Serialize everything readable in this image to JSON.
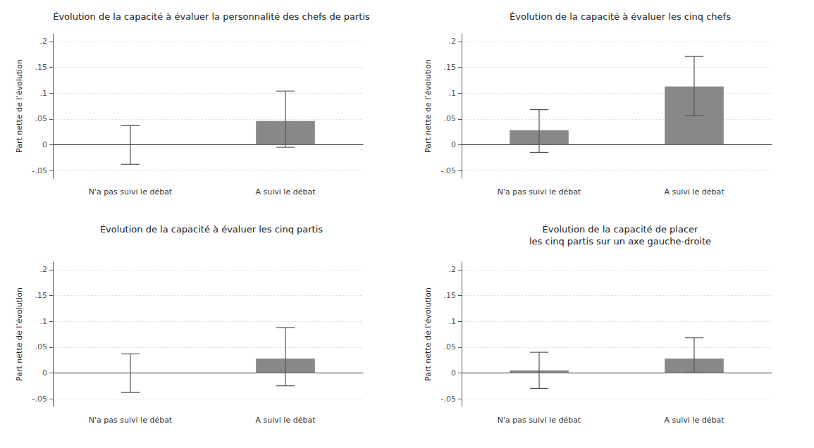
{
  "chart_data": [
    {
      "type": "bar",
      "title": "Évolution de la capacité à évaluer la personnalité des chefs de partis",
      "ylabel": "Part nette de l’évolution",
      "categories": [
        "N'a pas suivi le débat",
        "A suivi le débat"
      ],
      "values": [
        0.0,
        0.046
      ],
      "error_low": [
        0.038,
        0.051
      ],
      "error_high": [
        0.037,
        0.058
      ],
      "color": "#888888",
      "ylim": [
        -0.065,
        0.215
      ],
      "yticks": [
        {
          "value": -0.05,
          "label": "-.05"
        },
        0,
        {
          "value": 0.05,
          "label": ".05"
        },
        {
          "value": 0.1,
          "label": ".1"
        },
        {
          "value": 0.15,
          "label": ".15"
        },
        {
          "value": 0.2,
          "label": ".2"
        }
      ],
      "grid": true
    },
    {
      "type": "bar",
      "title": "Évolution de la capacité à évaluer les cinq chefs",
      "ylabel": "Part nette de l’évolution",
      "categories": [
        "N'a pas suivi le débat",
        "A suivi le débat"
      ],
      "values": [
        0.028,
        0.113
      ],
      "error_low": [
        0.043,
        0.057
      ],
      "error_high": [
        0.04,
        0.058
      ],
      "color": "#888888",
      "ylim": [
        -0.065,
        0.215
      ],
      "yticks": [
        {
          "value": -0.05,
          "label": "-.05"
        },
        0,
        {
          "value": 0.05,
          "label": ".05"
        },
        {
          "value": 0.1,
          "label": ".1"
        },
        {
          "value": 0.15,
          "label": ".15"
        },
        {
          "value": 0.2,
          "label": ".2"
        }
      ],
      "grid": true
    },
    {
      "type": "bar",
      "title": "Évolution de la capacité à évaluer les cinq partis",
      "ylabel": "Part nette de l’évolution",
      "categories": [
        "N'a pas suivi le débat",
        "A suivi le débat"
      ],
      "values": [
        0.0,
        0.028
      ],
      "error_low": [
        0.038,
        0.053
      ],
      "error_high": [
        0.037,
        0.06
      ],
      "color": "#888888",
      "ylim": [
        -0.065,
        0.215
      ],
      "yticks": [
        {
          "value": -0.05,
          "label": "-.05"
        },
        0,
        {
          "value": 0.05,
          "label": ".05"
        },
        {
          "value": 0.1,
          "label": ".1"
        },
        {
          "value": 0.15,
          "label": ".15"
        },
        {
          "value": 0.2,
          "label": ".2"
        }
      ],
      "grid": true
    },
    {
      "type": "bar",
      "title": "Évolution de la capacité de placer\nles cinq partis sur un axe gauche-droite",
      "ylabel": "Part nette de l’évolution",
      "categories": [
        "N'a pas suivi le débat",
        "A suivi le débat"
      ],
      "values": [
        0.005,
        0.028
      ],
      "error_low": [
        0.035,
        0.028
      ],
      "error_high": [
        0.035,
        0.04
      ],
      "color": "#888888",
      "ylim": [
        -0.065,
        0.215
      ],
      "yticks": [
        {
          "value": -0.05,
          "label": "-.05"
        },
        0,
        {
          "value": 0.05,
          "label": ".05"
        },
        {
          "value": 0.1,
          "label": ".1"
        },
        {
          "value": 0.15,
          "label": ".15"
        },
        {
          "value": 0.2,
          "label": ".2"
        }
      ],
      "grid": true
    }
  ]
}
